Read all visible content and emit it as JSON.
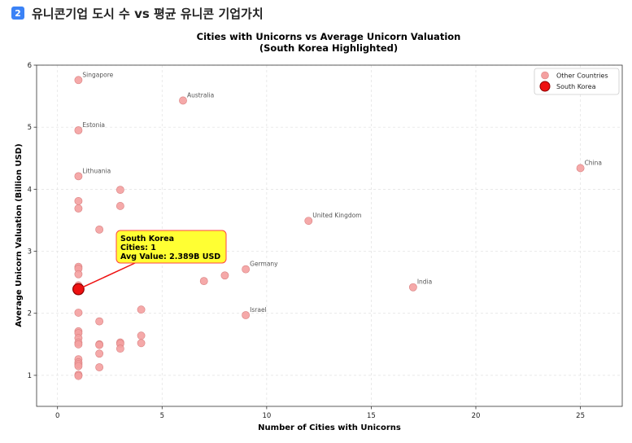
{
  "header": {
    "badge": "2",
    "title": "유니콘기업 도시 수 vs 평균 유니콘 기업가치"
  },
  "chart_data": {
    "type": "scatter",
    "title_line1": "Cities with Unicorns vs Average Unicorn Valuation",
    "title_line2": "(South Korea Highlighted)",
    "xlabel": "Number of Cities with Unicorns",
    "ylabel": "Average Unicorn Valuation (Billion USD)",
    "xlim": [
      -1,
      27
    ],
    "ylim": [
      0.5,
      6
    ],
    "xticks": [
      0,
      5,
      10,
      15,
      20,
      25
    ],
    "yticks": [
      1,
      2,
      3,
      4,
      5,
      6
    ],
    "grid": true,
    "legend_position": "top-right",
    "colors": {
      "other": "#f4a0a0",
      "other_edge": "#d98080",
      "korea": "#ee1111",
      "korea_edge": "#8b0000",
      "annotation_bg": "#ffff33",
      "annotation_border": "#ff4444"
    },
    "series": [
      {
        "name": "Other Countries",
        "points": [
          {
            "x": 1,
            "y": 5.76,
            "label": "Singapore"
          },
          {
            "x": 6,
            "y": 5.43,
            "label": "Australia"
          },
          {
            "x": 1,
            "y": 4.95,
            "label": "Estonia"
          },
          {
            "x": 1,
            "y": 4.21,
            "label": "Lithuania"
          },
          {
            "x": 25,
            "y": 4.34,
            "label": "China"
          },
          {
            "x": 12,
            "y": 3.49,
            "label": "United Kingdom"
          },
          {
            "x": 9,
            "y": 2.71,
            "label": "Germany"
          },
          {
            "x": 17,
            "y": 2.42,
            "label": "India"
          },
          {
            "x": 9,
            "y": 1.97,
            "label": "Israel"
          },
          {
            "x": 3,
            "y": 3.99
          },
          {
            "x": 1,
            "y": 3.81
          },
          {
            "x": 3,
            "y": 3.73
          },
          {
            "x": 1,
            "y": 3.69
          },
          {
            "x": 2,
            "y": 3.35
          },
          {
            "x": 1,
            "y": 2.75
          },
          {
            "x": 1,
            "y": 2.72
          },
          {
            "x": 1,
            "y": 2.63
          },
          {
            "x": 8,
            "y": 2.61
          },
          {
            "x": 7,
            "y": 2.52
          },
          {
            "x": 1,
            "y": 2.45
          },
          {
            "x": 4,
            "y": 2.06
          },
          {
            "x": 1,
            "y": 2.01
          },
          {
            "x": 2,
            "y": 1.87
          },
          {
            "x": 1,
            "y": 1.71
          },
          {
            "x": 1,
            "y": 1.68
          },
          {
            "x": 4,
            "y": 1.64
          },
          {
            "x": 1,
            "y": 1.6
          },
          {
            "x": 1,
            "y": 1.53
          },
          {
            "x": 3,
            "y": 1.53
          },
          {
            "x": 4,
            "y": 1.52
          },
          {
            "x": 3,
            "y": 1.51
          },
          {
            "x": 2,
            "y": 1.5
          },
          {
            "x": 1,
            "y": 1.5
          },
          {
            "x": 2,
            "y": 1.49
          },
          {
            "x": 3,
            "y": 1.43
          },
          {
            "x": 2,
            "y": 1.35
          },
          {
            "x": 1,
            "y": 1.26
          },
          {
            "x": 1,
            "y": 1.21
          },
          {
            "x": 1,
            "y": 1.18
          },
          {
            "x": 1,
            "y": 1.15
          },
          {
            "x": 2,
            "y": 1.13
          },
          {
            "x": 1,
            "y": 1.01
          },
          {
            "x": 1,
            "y": 0.99
          }
        ]
      },
      {
        "name": "South Korea",
        "points": [
          {
            "x": 1,
            "y": 2.389
          }
        ]
      }
    ],
    "annotation": {
      "line1": "South Korea",
      "line2": "Cities: 1",
      "line3": "Avg Value: 2.389B USD",
      "target_x": 1,
      "target_y": 2.389,
      "text_x": 3,
      "text_y": 3.1
    }
  }
}
